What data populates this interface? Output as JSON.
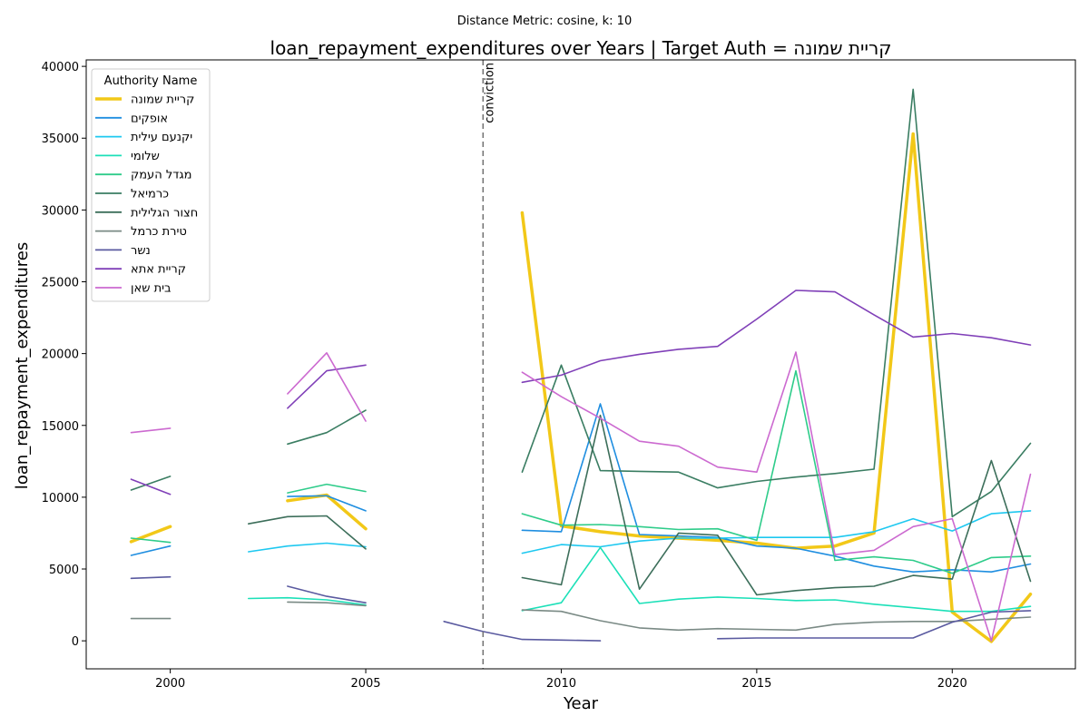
{
  "chart_data": {
    "type": "line",
    "suptitle": "Distance Metric: cosine, k: 10",
    "title": "loan_repayment_expenditures over Years | Target Auth = קריית שמונה",
    "xlabel": "Year",
    "ylabel": "loan_repayment_expenditures",
    "xlim": [
      1997.85,
      2023.15
    ],
    "ylim": [
      -1950,
      40450
    ],
    "xticks": [
      2000,
      2005,
      2010,
      2015,
      2020
    ],
    "yticks": [
      0,
      5000,
      10000,
      15000,
      20000,
      25000,
      30000,
      35000,
      40000
    ],
    "grid": false,
    "legend_title": "Authority Name",
    "legend_position": "top-left",
    "annotation": {
      "x": 2008,
      "label": "conviction",
      "style": "dashed",
      "color": "#777777"
    },
    "series": [
      {
        "name": "קריית שמונה",
        "color": "#f2c818",
        "width": 3.5,
        "points": [
          [
            1999,
            6900
          ],
          [
            2000,
            7950
          ],
          null,
          [
            2003,
            9750
          ],
          [
            2004,
            10150
          ],
          [
            2005,
            7800
          ],
          null,
          [
            2009,
            29800
          ],
          [
            2010,
            8000
          ],
          [
            2011,
            7600
          ],
          [
            2012,
            7300
          ],
          [
            2013,
            7150
          ],
          [
            2014,
            7000
          ],
          [
            2015,
            6800
          ],
          [
            2016,
            6450
          ],
          [
            2017,
            6600
          ],
          [
            2018,
            7500
          ],
          [
            2019,
            35300
          ],
          [
            2020,
            2000
          ],
          [
            2021,
            -50
          ],
          [
            2022,
            3250
          ]
        ]
      },
      {
        "name": "אופקים",
        "color": "#1f8ee0",
        "width": 1.6,
        "points": [
          [
            1999,
            5950
          ],
          [
            2000,
            6600
          ],
          null,
          [
            2003,
            10050
          ],
          [
            2004,
            10100
          ],
          [
            2005,
            9050
          ],
          null,
          [
            2009,
            7700
          ],
          [
            2010,
            7600
          ],
          [
            2011,
            16500
          ],
          [
            2012,
            7400
          ],
          [
            2013,
            7300
          ],
          [
            2014,
            7200
          ],
          [
            2015,
            6600
          ],
          [
            2016,
            6450
          ],
          [
            2017,
            5900
          ],
          [
            2018,
            5200
          ],
          [
            2019,
            4800
          ],
          [
            2020,
            4950
          ],
          [
            2021,
            4800
          ],
          [
            2022,
            5350
          ]
        ]
      },
      {
        "name": "יקנעם עילית",
        "color": "#1ec8f0",
        "width": 1.6,
        "points": [
          null,
          [
            2002,
            6200
          ],
          [
            2003,
            6600
          ],
          [
            2004,
            6800
          ],
          [
            2005,
            6550
          ],
          null,
          [
            2009,
            6100
          ],
          [
            2010,
            6700
          ],
          [
            2011,
            6550
          ],
          [
            2012,
            6950
          ],
          [
            2013,
            7150
          ],
          [
            2014,
            7150
          ],
          [
            2015,
            7200
          ],
          [
            2016,
            7200
          ],
          [
            2017,
            7200
          ],
          [
            2018,
            7600
          ],
          [
            2019,
            8500
          ],
          [
            2020,
            7650
          ],
          [
            2021,
            8850
          ],
          [
            2022,
            9050
          ]
        ]
      },
      {
        "name": "שלומי",
        "color": "#1ce0b8",
        "width": 1.6,
        "points": [
          null,
          [
            2002,
            2950
          ],
          [
            2003,
            3000
          ],
          [
            2004,
            2850
          ],
          [
            2005,
            2500
          ],
          null,
          [
            2009,
            2100
          ],
          [
            2010,
            2650
          ],
          [
            2011,
            6500
          ],
          [
            2012,
            2600
          ],
          [
            2013,
            2900
          ],
          [
            2014,
            3050
          ],
          [
            2015,
            2950
          ],
          [
            2016,
            2800
          ],
          [
            2017,
            2850
          ],
          [
            2018,
            2550
          ],
          [
            2019,
            2300
          ],
          [
            2020,
            2050
          ],
          [
            2021,
            2050
          ],
          [
            2022,
            2400
          ]
        ]
      },
      {
        "name": "מגדל העמק",
        "color": "#2ecc8a",
        "width": 1.6,
        "points": [
          [
            1999,
            7150
          ],
          [
            2000,
            6850
          ],
          null,
          [
            2003,
            10300
          ],
          [
            2004,
            10900
          ],
          [
            2005,
            10400
          ],
          null,
          [
            2009,
            8850
          ],
          [
            2010,
            8050
          ],
          [
            2011,
            8100
          ],
          [
            2012,
            7950
          ],
          [
            2013,
            7750
          ],
          [
            2014,
            7800
          ],
          [
            2015,
            7000
          ],
          [
            2016,
            18800
          ],
          [
            2017,
            5600
          ],
          [
            2018,
            5850
          ],
          [
            2019,
            5600
          ],
          [
            2020,
            4700
          ],
          [
            2021,
            5800
          ],
          [
            2022,
            5900
          ]
        ]
      },
      {
        "name": "כרמיאל",
        "color": "#3a7d62",
        "width": 1.6,
        "points": [
          [
            1999,
            10500
          ],
          [
            2000,
            11450
          ],
          null,
          [
            2003,
            13700
          ],
          [
            2004,
            14500
          ],
          [
            2005,
            16050
          ],
          null,
          [
            2009,
            11750
          ],
          [
            2010,
            19200
          ],
          [
            2011,
            11850
          ],
          [
            2012,
            11800
          ],
          [
            2013,
            11750
          ],
          [
            2014,
            10650
          ],
          [
            2015,
            11100
          ],
          [
            2016,
            11400
          ],
          [
            2017,
            11650
          ],
          [
            2018,
            11950
          ],
          [
            2019,
            38400
          ],
          [
            2020,
            8650
          ],
          [
            2021,
            10400
          ],
          [
            2022,
            13750
          ]
        ]
      },
      {
        "name": "חצור הגלילית",
        "color": "#3c6e5a",
        "width": 1.6,
        "points": [
          null,
          [
            2002,
            8150
          ],
          [
            2003,
            8650
          ],
          [
            2004,
            8700
          ],
          [
            2005,
            6400
          ],
          null,
          [
            2009,
            4400
          ],
          [
            2010,
            3900
          ],
          [
            2011,
            15700
          ],
          [
            2012,
            3600
          ],
          [
            2013,
            7500
          ],
          [
            2014,
            7350
          ],
          [
            2015,
            3200
          ],
          [
            2016,
            3500
          ],
          [
            2017,
            3700
          ],
          [
            2018,
            3800
          ],
          [
            2019,
            4550
          ],
          [
            2020,
            4300
          ],
          [
            2021,
            12550
          ],
          [
            2022,
            4150
          ]
        ]
      },
      {
        "name": "טירת כרמל",
        "color": "#7a8a85",
        "width": 1.6,
        "points": [
          [
            1999,
            1550
          ],
          [
            2000,
            1550
          ],
          null,
          [
            2003,
            2700
          ],
          [
            2004,
            2650
          ],
          [
            2005,
            2450
          ],
          null,
          [
            2009,
            2150
          ],
          [
            2010,
            2050
          ],
          [
            2011,
            1400
          ],
          [
            2012,
            900
          ],
          [
            2013,
            750
          ],
          [
            2014,
            850
          ],
          [
            2015,
            800
          ],
          [
            2016,
            750
          ],
          [
            2017,
            1150
          ],
          [
            2018,
            1300
          ],
          [
            2019,
            1350
          ],
          [
            2020,
            1350
          ],
          [
            2021,
            1500
          ],
          [
            2022,
            1650
          ]
        ]
      },
      {
        "name": "נשר",
        "color": "#5a5aa0",
        "width": 1.6,
        "points": [
          [
            1999,
            4350
          ],
          [
            2000,
            4450
          ],
          null,
          [
            2003,
            3800
          ],
          [
            2004,
            3100
          ],
          [
            2005,
            2650
          ],
          null,
          [
            2007,
            1350
          ],
          [
            2008,
            650
          ],
          [
            2009,
            100
          ],
          [
            2010,
            50
          ],
          [
            2011,
            0
          ],
          null,
          [
            2014,
            150
          ],
          [
            2015,
            200
          ],
          [
            2016,
            200
          ],
          [
            2017,
            200
          ],
          [
            2018,
            200
          ],
          [
            2019,
            200
          ],
          [
            2020,
            1300
          ],
          [
            2021,
            2000
          ],
          [
            2022,
            2100
          ]
        ]
      },
      {
        "name": "קריית אתא",
        "color": "#8040b8",
        "width": 1.6,
        "points": [
          [
            1999,
            11250
          ],
          [
            2000,
            10200
          ],
          null,
          [
            2003,
            16200
          ],
          [
            2004,
            18800
          ],
          [
            2005,
            19200
          ],
          null,
          [
            2009,
            18000
          ],
          [
            2010,
            18500
          ],
          [
            2011,
            19500
          ],
          [
            2012,
            19950
          ],
          [
            2013,
            20300
          ],
          [
            2014,
            20500
          ],
          [
            2015,
            22400
          ],
          [
            2016,
            24400
          ],
          [
            2017,
            24300
          ],
          [
            2018,
            22700
          ],
          [
            2019,
            21150
          ],
          [
            2020,
            21400
          ],
          [
            2021,
            21100
          ],
          [
            2022,
            20600
          ]
        ]
      },
      {
        "name": "בית שאן",
        "color": "#cc6ad0",
        "width": 1.6,
        "points": [
          [
            1999,
            14500
          ],
          [
            2000,
            14800
          ],
          null,
          [
            2003,
            17200
          ],
          [
            2004,
            20050
          ],
          [
            2005,
            15300
          ],
          null,
          [
            2009,
            18700
          ],
          [
            2010,
            17000
          ],
          [
            2011,
            15500
          ],
          [
            2012,
            13900
          ],
          [
            2013,
            13550
          ],
          [
            2014,
            12100
          ],
          [
            2015,
            11750
          ],
          [
            2016,
            20100
          ],
          [
            2017,
            6000
          ],
          [
            2018,
            6300
          ],
          [
            2019,
            7950
          ],
          [
            2020,
            8500
          ],
          [
            2021,
            0
          ],
          [
            2022,
            11600
          ]
        ]
      }
    ]
  }
}
